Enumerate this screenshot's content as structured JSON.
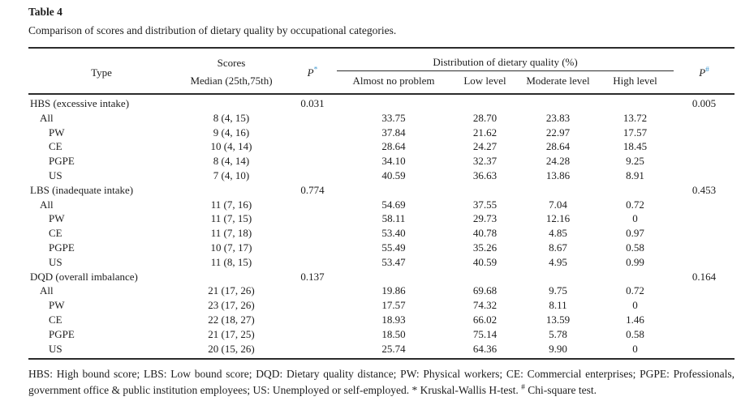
{
  "title": "Table 4",
  "caption": "Comparison of scores and distribution of dietary quality by occupational categories.",
  "header": {
    "type_label": "Type",
    "scores_group": "Scores",
    "median_label": "Median (25th,75th)",
    "p_kruskal_base": "P",
    "p_kruskal_sup": "*",
    "dist_group": "Distribution of dietary quality (%)",
    "dist_cols": [
      "Almost no problem",
      "Low level",
      "Moderate level",
      "High level"
    ],
    "p_chisquare_base": "P",
    "p_chisquare_sup": "#"
  },
  "rows": [
    {
      "label": "HBS (excessive intake)",
      "indent": 0,
      "median": "",
      "p_kruskal": "0.031",
      "dist": [
        "",
        "",
        "",
        ""
      ],
      "p_chisquare": "0.005"
    },
    {
      "label": "All",
      "indent": 1,
      "median": "8 (4, 15)",
      "p_kruskal": "",
      "dist": [
        "33.75",
        "28.70",
        "23.83",
        "13.72"
      ],
      "p_chisquare": ""
    },
    {
      "label": "PW",
      "indent": 2,
      "median": "9 (4, 16)",
      "p_kruskal": "",
      "dist": [
        "37.84",
        "21.62",
        "22.97",
        "17.57"
      ],
      "p_chisquare": ""
    },
    {
      "label": "CE",
      "indent": 2,
      "median": "10 (4, 14)",
      "p_kruskal": "",
      "dist": [
        "28.64",
        "24.27",
        "28.64",
        "18.45"
      ],
      "p_chisquare": ""
    },
    {
      "label": "PGPE",
      "indent": 2,
      "median": "8 (4, 14)",
      "p_kruskal": "",
      "dist": [
        "34.10",
        "32.37",
        "24.28",
        "9.25"
      ],
      "p_chisquare": ""
    },
    {
      "label": "US",
      "indent": 2,
      "median": "7 (4, 10)",
      "p_kruskal": "",
      "dist": [
        "40.59",
        "36.63",
        "13.86",
        "8.91"
      ],
      "p_chisquare": ""
    },
    {
      "label": "LBS (inadequate intake)",
      "indent": 0,
      "median": "",
      "p_kruskal": "0.774",
      "dist": [
        "",
        "",
        "",
        ""
      ],
      "p_chisquare": "0.453"
    },
    {
      "label": "All",
      "indent": 1,
      "median": "11 (7, 16)",
      "p_kruskal": "",
      "dist": [
        "54.69",
        "37.55",
        "7.04",
        "0.72"
      ],
      "p_chisquare": ""
    },
    {
      "label": "PW",
      "indent": 2,
      "median": "11 (7, 15)",
      "p_kruskal": "",
      "dist": [
        "58.11",
        "29.73",
        "12.16",
        "0"
      ],
      "p_chisquare": ""
    },
    {
      "label": "CE",
      "indent": 2,
      "median": "11 (7, 18)",
      "p_kruskal": "",
      "dist": [
        "53.40",
        "40.78",
        "4.85",
        "0.97"
      ],
      "p_chisquare": ""
    },
    {
      "label": "PGPE",
      "indent": 2,
      "median": "10 (7, 17)",
      "p_kruskal": "",
      "dist": [
        "55.49",
        "35.26",
        "8.67",
        "0.58"
      ],
      "p_chisquare": ""
    },
    {
      "label": "US",
      "indent": 2,
      "median": "11 (8, 15)",
      "p_kruskal": "",
      "dist": [
        "53.47",
        "40.59",
        "4.95",
        "0.99"
      ],
      "p_chisquare": ""
    },
    {
      "label": "DQD (overall imbalance)",
      "indent": 0,
      "median": "",
      "p_kruskal": "0.137",
      "dist": [
        "",
        "",
        "",
        ""
      ],
      "p_chisquare": "0.164"
    },
    {
      "label": "All",
      "indent": 1,
      "median": "21 (17, 26)",
      "p_kruskal": "",
      "dist": [
        "19.86",
        "69.68",
        "9.75",
        "0.72"
      ],
      "p_chisquare": ""
    },
    {
      "label": "PW",
      "indent": 2,
      "median": "23 (17, 26)",
      "p_kruskal": "",
      "dist": [
        "17.57",
        "74.32",
        "8.11",
        "0"
      ],
      "p_chisquare": ""
    },
    {
      "label": "CE",
      "indent": 2,
      "median": "22 (18, 27)",
      "p_kruskal": "",
      "dist": [
        "18.93",
        "66.02",
        "13.59",
        "1.46"
      ],
      "p_chisquare": ""
    },
    {
      "label": "PGPE",
      "indent": 2,
      "median": "21 (17, 25)",
      "p_kruskal": "",
      "dist": [
        "18.50",
        "75.14",
        "5.78",
        "0.58"
      ],
      "p_chisquare": ""
    },
    {
      "label": "US",
      "indent": 2,
      "median": "20 (15, 26)",
      "p_kruskal": "",
      "dist": [
        "25.74",
        "64.36",
        "9.90",
        "0"
      ],
      "p_chisquare": ""
    }
  ],
  "footnote": {
    "main": "HBS: High bound score; LBS: Low bound score; DQD: Dietary quality distance; PW: Physical workers; CE: Commercial enterprises; PGPE: Professionals, government office & public institution employees; US: Unemployed or self-employed. * Kruskal-Wallis H-test.",
    "sup": "#",
    "tail": " Chi-square test."
  },
  "colors": {
    "accent_blue": "#3d97cf",
    "text": "#1d1d1d",
    "rule": "#2b2b2b"
  }
}
